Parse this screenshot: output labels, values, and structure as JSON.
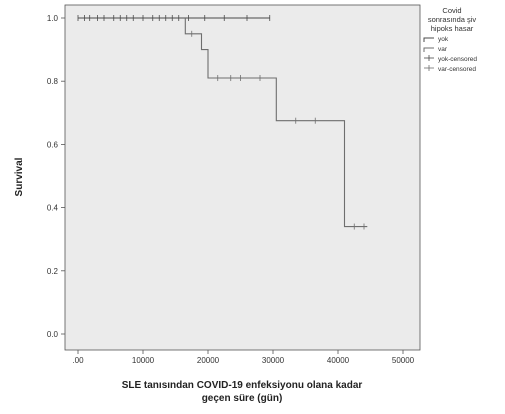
{
  "chart_data": {
    "type": "line",
    "subtype": "kaplan-meier",
    "xlabel_lines": [
      "SLE tanısından COVID-19 enfeksiyonu olana kadar",
      "geçen süre (gün)"
    ],
    "ylabel": "Survival",
    "xlim": [
      0,
      55000
    ],
    "ylim": [
      0.0,
      1.0
    ],
    "x_ticks": [
      0,
      10000,
      20000,
      30000,
      40000,
      50000
    ],
    "x_tick_labels": [
      ".00",
      "10000",
      "20000",
      "30000",
      "40000",
      "50000"
    ],
    "y_ticks": [
      0.0,
      0.2,
      0.4,
      0.6,
      0.8,
      1.0
    ],
    "y_tick_labels": [
      "0.0",
      "0.2",
      "0.4",
      "0.6",
      "0.8",
      "1.0"
    ],
    "grid": false,
    "legend_position": "right",
    "legend": {
      "title_lines": [
        "Covid",
        "sonrasında şiv",
        "hipoks hasar"
      ],
      "entries": [
        "yok",
        "var",
        "yok-censored",
        "var-censored"
      ]
    },
    "series": [
      {
        "name": "yok",
        "color": "#4a4a4a",
        "steps": [
          [
            0,
            1.0
          ],
          [
            29500,
            1.0
          ]
        ],
        "censored": [
          0,
          1000,
          1800,
          3000,
          4000,
          5500,
          6500,
          7500,
          8500,
          10000,
          11500,
          12500,
          13500,
          14500,
          15500,
          17000,
          19500,
          22500,
          26000,
          29500
        ]
      },
      {
        "name": "var",
        "color": "#6e6e6e",
        "steps": [
          [
            16500,
            1.0
          ],
          [
            16500,
            0.95
          ],
          [
            19000,
            0.95
          ],
          [
            19000,
            0.9
          ],
          [
            20000,
            0.9
          ],
          [
            20000,
            0.81
          ],
          [
            30500,
            0.81
          ],
          [
            30500,
            0.675
          ],
          [
            41000,
            0.675
          ],
          [
            41000,
            0.34
          ],
          [
            44500,
            0.34
          ]
        ],
        "censored": [
          17500,
          21500,
          23500,
          25000,
          28000,
          33500,
          36500,
          42500,
          44000
        ]
      }
    ]
  }
}
